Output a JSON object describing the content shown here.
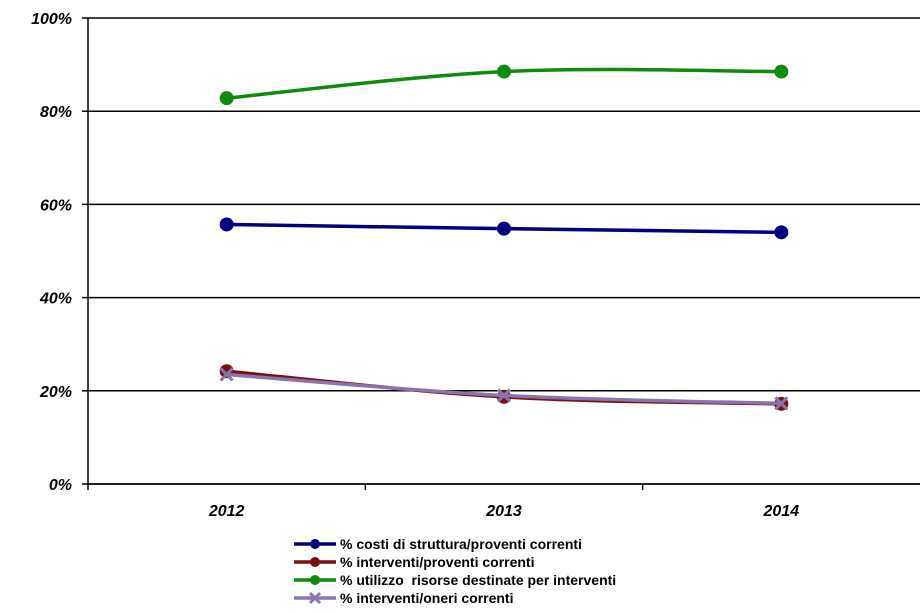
{
  "chart_data": {
    "type": "line",
    "categories": [
      "2012",
      "2013",
      "2014"
    ],
    "ylim": [
      0,
      100
    ],
    "yticks": [
      "0%",
      "20%",
      "40%",
      "60%",
      "80%",
      "100%"
    ],
    "grid": true,
    "legend_position": "bottom",
    "series": [
      {
        "name": "% costi di struttura/proventi correnti",
        "values": [
          55.7,
          54.8,
          54.0
        ],
        "color": "#000080",
        "marker": "circle"
      },
      {
        "name": "% interventi/proventi correnti",
        "values": [
          24.2,
          18.7,
          17.2
        ],
        "color": "#7a0f12",
        "marker": "circle"
      },
      {
        "name": "% utilizzo  risorse destinate per interventi",
        "values": [
          82.8,
          88.5,
          88.5
        ],
        "color": "#0e8a0e",
        "marker": "circle"
      },
      {
        "name": "% interventi/oneri correnti",
        "values": [
          23.5,
          19.0,
          17.3
        ],
        "color": "#8b74ad",
        "marker": "x"
      }
    ]
  }
}
